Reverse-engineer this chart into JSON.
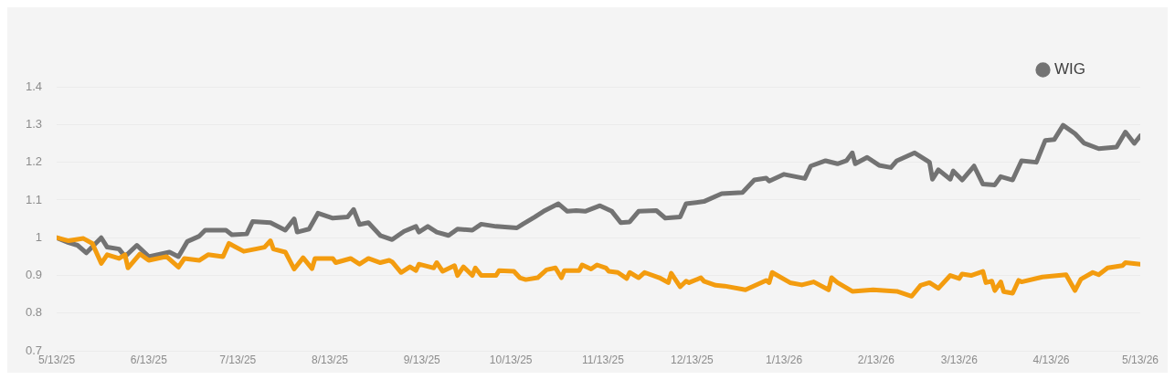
{
  "chart_data": {
    "type": "line",
    "xlim": [
      "2025-05-13",
      "2026-05-13"
    ],
    "xticks": [
      {
        "value": "2025-05-13",
        "label": "5/13/25"
      },
      {
        "value": "2025-06-13",
        "label": "6/13/25"
      },
      {
        "value": "2025-07-13",
        "label": "7/13/25"
      },
      {
        "value": "2025-08-13",
        "label": "8/13/25"
      },
      {
        "value": "2025-09-13",
        "label": "9/13/25"
      },
      {
        "value": "2025-10-13",
        "label": "10/13/25"
      },
      {
        "value": "2025-11-13",
        "label": "11/13/25"
      },
      {
        "value": "2025-12-13",
        "label": "12/13/25"
      },
      {
        "value": "2026-01-13",
        "label": "1/13/26"
      },
      {
        "value": "2026-02-13",
        "label": "2/13/26"
      },
      {
        "value": "2026-03-13",
        "label": "3/13/26"
      },
      {
        "value": "2026-04-13",
        "label": "4/13/26"
      },
      {
        "value": "2026-05-13",
        "label": "5/13/26"
      }
    ],
    "ylim": [
      0.7,
      1.4
    ],
    "yticks": [
      0.7,
      0.8,
      0.9,
      1,
      1.1,
      1.2,
      1.3,
      1.4
    ],
    "grid": "y",
    "legend": "top right",
    "marker": "none",
    "line_style": "solid",
    "series": [
      {
        "color": "#f39c0f",
        "x": [
          "2025-05-13",
          "2025-05-17",
          "2025-05-22",
          "2025-05-25",
          "2025-05-28",
          "2025-05-30",
          "2025-06-03",
          "2025-06-05",
          "2025-06-06",
          "2025-06-10",
          "2025-06-13",
          "2025-06-19",
          "2025-06-23",
          "2025-06-25",
          "2025-06-30",
          "2025-07-03",
          "2025-07-08",
          "2025-07-10",
          "2025-07-15",
          "2025-07-19",
          "2025-07-22",
          "2025-07-24",
          "2025-07-25",
          "2025-07-29",
          "2025-08-01",
          "2025-08-04",
          "2025-08-07",
          "2025-08-08",
          "2025-08-14",
          "2025-08-15",
          "2025-08-20",
          "2025-08-23",
          "2025-08-26",
          "2025-08-30",
          "2025-09-02",
          "2025-09-03",
          "2025-09-06",
          "2025-09-09",
          "2025-09-11",
          "2025-09-12",
          "2025-09-17",
          "2025-09-18",
          "2025-09-20",
          "2025-09-24",
          "2025-09-25",
          "2025-09-27",
          "2025-09-30",
          "2025-10-01",
          "2025-10-03",
          "2025-10-08",
          "2025-10-09",
          "2025-10-14",
          "2025-10-16",
          "2025-10-18",
          "2025-10-22",
          "2025-10-25",
          "2025-10-28",
          "2025-10-30",
          "2025-10-31",
          "2025-11-05",
          "2025-11-06",
          "2025-11-09",
          "2025-11-11",
          "2025-11-14",
          "2025-11-15",
          "2025-11-18",
          "2025-11-21",
          "2025-11-22",
          "2025-11-25",
          "2025-11-27",
          "2025-12-02",
          "2025-12-05",
          "2025-12-06",
          "2025-12-09",
          "2025-12-11",
          "2025-12-12",
          "2025-12-16",
          "2025-12-17",
          "2025-12-21",
          "2025-12-24",
          "2025-12-31",
          "2026-01-07",
          "2026-01-08",
          "2026-01-09",
          "2026-01-15",
          "2026-01-19",
          "2026-01-23",
          "2026-01-28",
          "2026-01-29",
          "2026-01-31",
          "2026-02-05",
          "2026-02-12",
          "2026-02-20",
          "2026-02-25",
          "2026-02-28",
          "2026-03-03",
          "2026-03-06",
          "2026-03-10",
          "2026-03-13",
          "2026-03-14",
          "2026-03-17",
          "2026-03-21",
          "2026-03-22",
          "2026-03-24",
          "2026-03-25",
          "2026-03-27",
          "2026-03-28",
          "2026-03-31",
          "2026-04-02",
          "2026-04-03",
          "2026-04-10",
          "2026-04-18",
          "2026-04-21",
          "2026-04-23",
          "2026-04-27",
          "2026-04-29",
          "2026-05-02",
          "2026-05-07",
          "2026-05-08",
          "2026-05-13"
        ],
        "values": [
          1.0,
          0.992,
          0.998,
          0.985,
          0.932,
          0.955,
          0.945,
          0.955,
          0.92,
          0.957,
          0.94,
          0.95,
          0.922,
          0.945,
          0.94,
          0.955,
          0.95,
          0.985,
          0.964,
          0.97,
          0.975,
          0.992,
          0.97,
          0.962,
          0.917,
          0.947,
          0.918,
          0.945,
          0.945,
          0.934,
          0.945,
          0.93,
          0.945,
          0.934,
          0.94,
          0.936,
          0.908,
          0.923,
          0.913,
          0.93,
          0.92,
          0.934,
          0.911,
          0.926,
          0.9,
          0.923,
          0.9,
          0.92,
          0.9,
          0.9,
          0.913,
          0.911,
          0.894,
          0.889,
          0.894,
          0.915,
          0.92,
          0.894,
          0.913,
          0.913,
          0.928,
          0.917,
          0.928,
          0.92,
          0.911,
          0.908,
          0.892,
          0.908,
          0.894,
          0.908,
          0.894,
          0.881,
          0.906,
          0.87,
          0.885,
          0.881,
          0.894,
          0.885,
          0.874,
          0.872,
          0.862,
          0.887,
          0.881,
          0.908,
          0.881,
          0.875,
          0.883,
          0.862,
          0.894,
          0.881,
          0.858,
          0.862,
          0.858,
          0.845,
          0.874,
          0.881,
          0.866,
          0.9,
          0.892,
          0.904,
          0.9,
          0.911,
          0.881,
          0.885,
          0.86,
          0.883,
          0.857,
          0.853,
          0.887,
          0.883,
          0.896,
          0.902,
          0.86,
          0.89,
          0.908,
          0.902,
          0.92,
          0.926,
          0.934,
          0.93
        ]
      },
      {
        "name": "WIG",
        "color": "#737373",
        "x": [
          "2025-05-13",
          "2025-05-17",
          "2025-05-20",
          "2025-05-23",
          "2025-05-28",
          "2025-05-30",
          "2025-06-03",
          "2025-06-05",
          "2025-06-09",
          "2025-06-13",
          "2025-06-20",
          "2025-06-23",
          "2025-06-26",
          "2025-06-30",
          "2025-07-02",
          "2025-07-09",
          "2025-07-11",
          "2025-07-16",
          "2025-07-18",
          "2025-07-24",
          "2025-07-29",
          "2025-08-01",
          "2025-08-02",
          "2025-08-06",
          "2025-08-09",
          "2025-08-14",
          "2025-08-19",
          "2025-08-21",
          "2025-08-23",
          "2025-08-26",
          "2025-08-30",
          "2025-09-03",
          "2025-09-07",
          "2025-09-11",
          "2025-09-12",
          "2025-09-15",
          "2025-09-18",
          "2025-09-22",
          "2025-09-25",
          "2025-09-30",
          "2025-10-03",
          "2025-10-08",
          "2025-10-15",
          "2025-10-17",
          "2025-10-21",
          "2025-10-24",
          "2025-10-29",
          "2025-11-01",
          "2025-11-04",
          "2025-11-07",
          "2025-11-12",
          "2025-11-16",
          "2025-11-19",
          "2025-11-22",
          "2025-11-25",
          "2025-12-01",
          "2025-12-04",
          "2025-12-09",
          "2025-12-11",
          "2025-12-17",
          "2025-12-23",
          "2025-12-30",
          "2026-01-03",
          "2026-01-07",
          "2026-01-08",
          "2026-01-13",
          "2026-01-20",
          "2026-01-22",
          "2026-01-27",
          "2026-01-31",
          "2026-02-03",
          "2026-02-05",
          "2026-02-06",
          "2026-02-10",
          "2026-02-14",
          "2026-02-18",
          "2026-02-20",
          "2026-02-26",
          "2026-03-03",
          "2026-03-04",
          "2026-03-06",
          "2026-03-10",
          "2026-03-11",
          "2026-03-14",
          "2026-03-18",
          "2026-03-21",
          "2026-03-25",
          "2026-03-27",
          "2026-03-31",
          "2026-04-03",
          "2026-04-08",
          "2026-04-11",
          "2026-04-14",
          "2026-04-17",
          "2026-04-21",
          "2026-04-24",
          "2026-04-29",
          "2026-05-05",
          "2026-05-08",
          "2026-05-11",
          "2026-05-13"
        ],
        "values": [
          1.0,
          0.987,
          0.98,
          0.96,
          1.0,
          0.975,
          0.97,
          0.95,
          0.98,
          0.95,
          0.962,
          0.95,
          0.99,
          1.004,
          1.02,
          1.02,
          1.008,
          1.01,
          1.043,
          1.04,
          1.02,
          1.05,
          1.015,
          1.023,
          1.065,
          1.052,
          1.055,
          1.075,
          1.035,
          1.04,
          1.006,
          0.995,
          1.017,
          1.03,
          1.015,
          1.03,
          1.015,
          1.006,
          1.023,
          1.02,
          1.036,
          1.03,
          1.026,
          1.036,
          1.055,
          1.07,
          1.09,
          1.07,
          1.072,
          1.07,
          1.085,
          1.07,
          1.04,
          1.042,
          1.07,
          1.072,
          1.052,
          1.055,
          1.09,
          1.096,
          1.117,
          1.12,
          1.153,
          1.158,
          1.15,
          1.168,
          1.157,
          1.19,
          1.204,
          1.196,
          1.204,
          1.225,
          1.196,
          1.213,
          1.192,
          1.186,
          1.204,
          1.225,
          1.2,
          1.155,
          1.18,
          1.155,
          1.177,
          1.153,
          1.19,
          1.142,
          1.14,
          1.162,
          1.153,
          1.204,
          1.2,
          1.258,
          1.26,
          1.298,
          1.276,
          1.251,
          1.236,
          1.24,
          1.28,
          1.25,
          1.27
        ]
      }
    ]
  }
}
